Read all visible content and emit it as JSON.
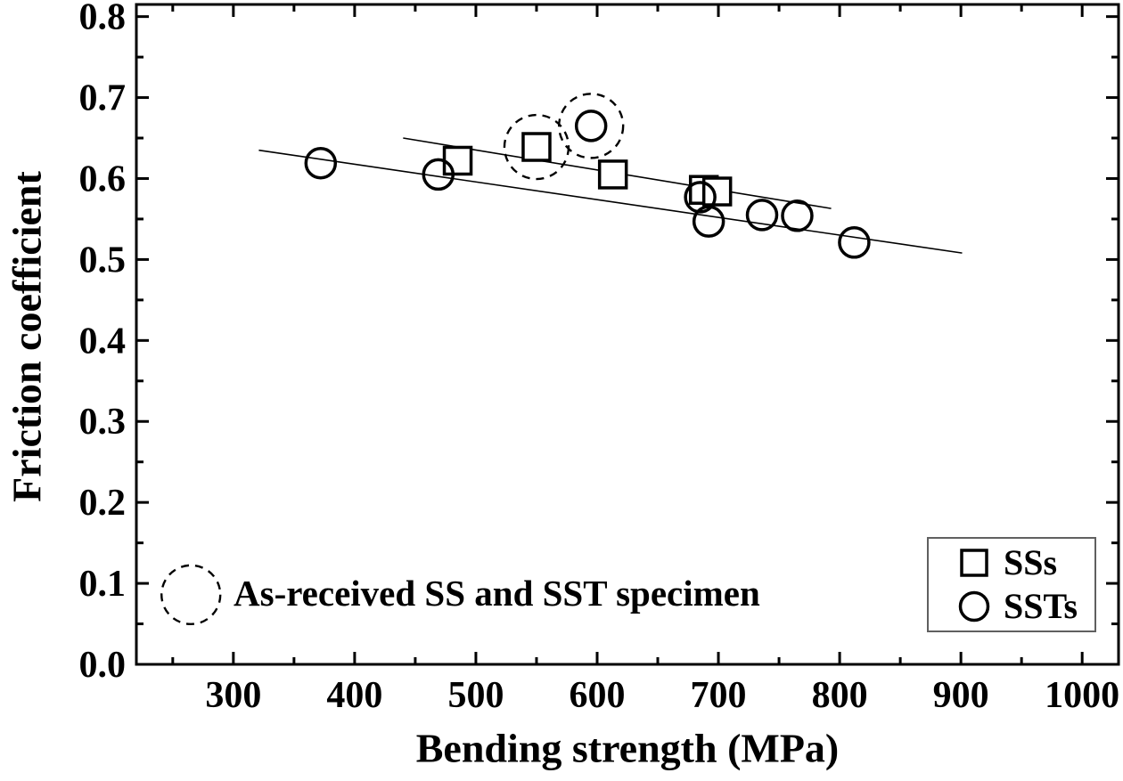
{
  "chart_data": {
    "type": "scatter",
    "title": "",
    "xlabel": "Bending strength (MPa)",
    "ylabel": "Friction coefficient",
    "xlim": [
      220,
      1030
    ],
    "ylim": [
      0,
      0.815
    ],
    "grid": false,
    "xticks": {
      "major": [
        300,
        400,
        500,
        600,
        700,
        800,
        900,
        1000
      ],
      "labels": [
        "300",
        "400",
        "500",
        "600",
        "700",
        "800",
        "900",
        "1000"
      ],
      "minor": [
        250,
        350,
        450,
        550,
        650,
        750,
        850,
        950
      ]
    },
    "yticks": {
      "major": [
        0.0,
        0.1,
        0.2,
        0.3,
        0.4,
        0.5,
        0.6,
        0.7,
        0.8
      ],
      "labels": [
        "0.0",
        "0.1",
        "0.2",
        "0.3",
        "0.4",
        "0.5",
        "0.6",
        "0.7",
        "0.8"
      ],
      "minor": [
        0.05,
        0.15,
        0.25,
        0.35,
        0.45,
        0.55,
        0.65,
        0.75
      ]
    },
    "series": [
      {
        "name": "SSs",
        "marker": "square",
        "points": [
          [
            485,
            0.622
          ],
          [
            550,
            0.639
          ],
          [
            613,
            0.605
          ],
          [
            688,
            0.586
          ],
          [
            699,
            0.584
          ]
        ]
      },
      {
        "name": "SSTs",
        "marker": "circle",
        "points": [
          [
            372,
            0.619
          ],
          [
            469,
            0.605
          ],
          [
            595,
            0.665
          ],
          [
            685,
            0.577
          ],
          [
            692,
            0.547
          ],
          [
            736,
            0.555
          ],
          [
            765,
            0.554
          ],
          [
            812,
            0.521
          ]
        ]
      }
    ],
    "trend_lines": [
      {
        "series": "SSs",
        "x1": 440,
        "y1": 0.65,
        "x2": 793,
        "y2": 0.563
      },
      {
        "series": "SSTs",
        "x1": 321,
        "y1": 0.635,
        "x2": 901,
        "y2": 0.508
      }
    ],
    "highlight_circles": [
      {
        "label": "as-received SS specimen",
        "x": 550,
        "y": 0.639
      },
      {
        "label": "as-received SST specimen",
        "x": 595,
        "y": 0.665
      }
    ],
    "annotation": {
      "text": "As-received SS and SST specimen",
      "key_circle_x": 265,
      "key_circle_y": 0.086
    },
    "legend": {
      "position": "bottom-right",
      "entries": [
        {
          "marker": "square",
          "label": "SSs"
        },
        {
          "marker": "circle",
          "label": "SSTs"
        }
      ]
    }
  },
  "colors": {
    "foreground": "#000000",
    "background": "#ffffff",
    "legend_border": "#606060"
  }
}
